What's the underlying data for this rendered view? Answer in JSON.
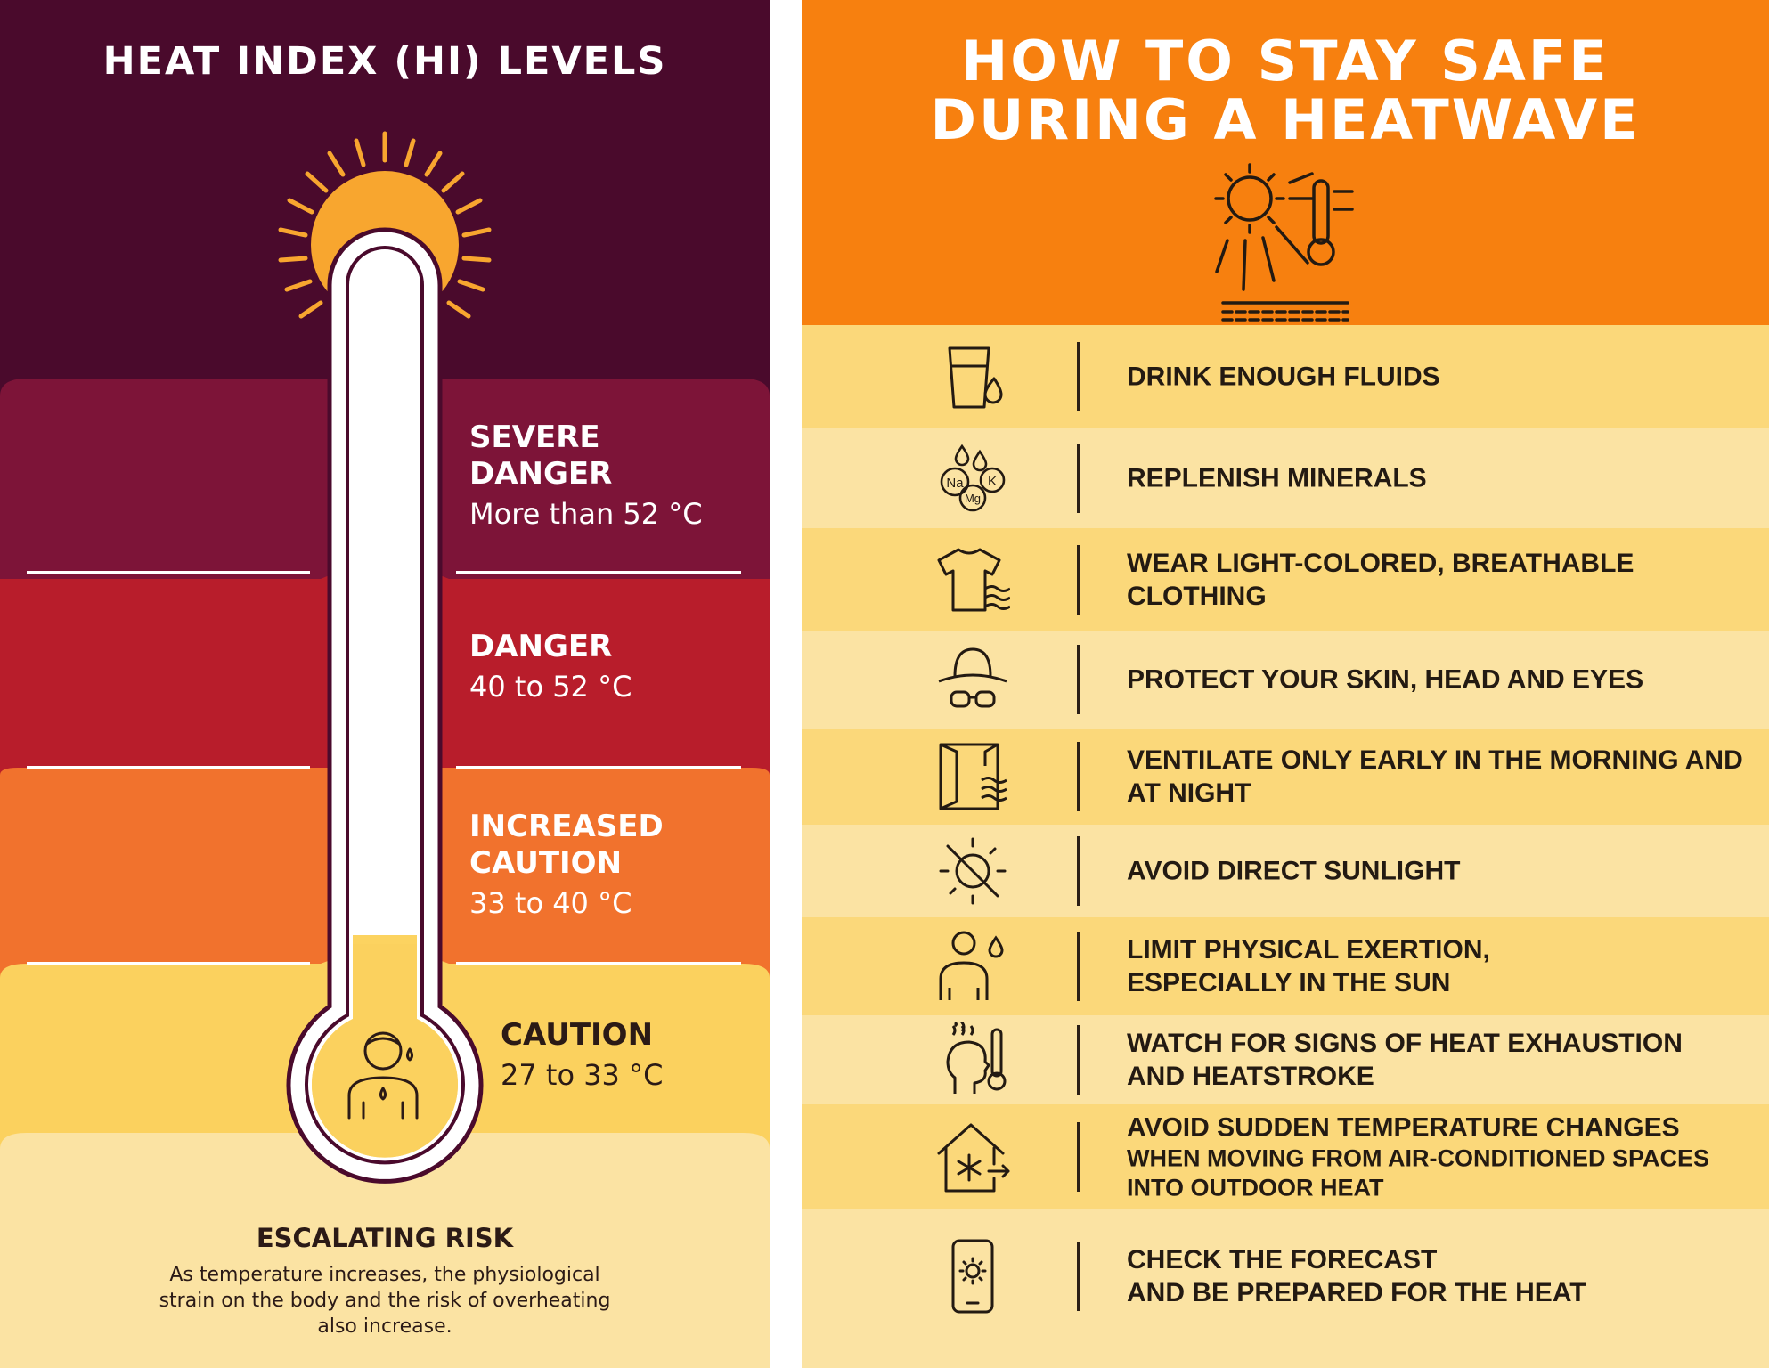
{
  "left_panel": {
    "title": "HEAT INDEX (HI) LEVELS",
    "levels": [
      {
        "name": "SEVERE DANGER",
        "range": "More than 52 °C",
        "icon": "heatstroke-person-icon",
        "color": "#7d1438"
      },
      {
        "name": "DANGER",
        "range": "40 to 52 °C",
        "icon": "sweating-person-thermometer-icon",
        "color": "#b81d2b"
      },
      {
        "name": "INCREASED CAUTION",
        "range": "33 to 40 °C",
        "icon": "overheated-person-icon",
        "color": "#f1722d"
      },
      {
        "name": "CAUTION",
        "range": "27 to 33 °C",
        "icon": "sweating-person-icon",
        "color": "#fbd15e"
      }
    ],
    "risk_title": "ESCALATING RISK",
    "risk_text": "As temperature increases, the physiological strain on the body and the risk of overheating also increase."
  },
  "right_panel": {
    "title_line1": "HOW TO STAY SAFE",
    "title_line2": "DURING A HEATWAVE",
    "header_icon": "sun-thermometer-icon",
    "tips": [
      {
        "line1": "DRINK ENOUGH FLUIDS",
        "icon": "glass-water-icon"
      },
      {
        "line1": "REPLENISH MINERALS",
        "icon": "minerals-icon",
        "icon_labels": [
          "Na",
          "Mg",
          "K"
        ]
      },
      {
        "line1": "WEAR LIGHT-COLORED, BREATHABLE CLOTHING",
        "icon": "tshirt-icon"
      },
      {
        "line1": "PROTECT YOUR SKIN, HEAD AND EYES",
        "icon": "hat-sunglasses-icon"
      },
      {
        "line1": "VENTILATE ONLY EARLY IN THE MORNING AND AT NIGHT",
        "icon": "window-air-icon"
      },
      {
        "line1": "AVOID DIRECT SUNLIGHT",
        "icon": "no-sun-icon"
      },
      {
        "line1": "LIMIT PHYSICAL EXERTION,",
        "line2": "ESPECIALLY IN THE SUN",
        "icon": "exertion-person-icon"
      },
      {
        "line1": "WATCH FOR SIGNS OF HEAT EXHAUSTION",
        "line2": "AND HEATSTROKE",
        "icon": "head-thermometer-icon"
      },
      {
        "line1": "AVOID SUDDEN TEMPERATURE CHANGES",
        "line2": "WHEN MOVING FROM AIR-CONDITIONED SPACES",
        "line3": "INTO OUTDOOR HEAT",
        "icon": "house-snowflake-icon"
      },
      {
        "line1": "CHECK THE FORECAST",
        "line2": "AND BE PREPARED FOR THE HEAT",
        "icon": "phone-sun-icon"
      }
    ]
  }
}
